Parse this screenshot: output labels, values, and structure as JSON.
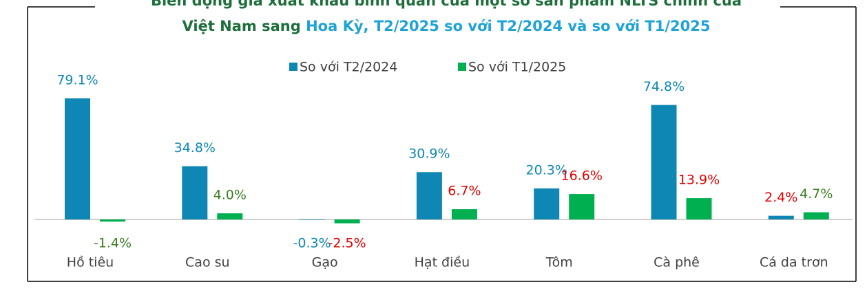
{
  "chart_data": {
    "type": "bar",
    "title": [
      "Biến động giá xuất khẩu bình quân của một số sản phẩm NLTS chính của",
      "Việt Nam sang",
      "Hoa Kỳ, T2/2025 so với T2/2024 và so với T1/2025"
    ],
    "title_colors": [
      "#1e6e3c",
      "#1e6e3c",
      "#1fa3d6"
    ],
    "categories": [
      "Hồ tiêu",
      "Cao su",
      "Gạo",
      "Hạt điều",
      "Tôm",
      "Cà phê",
      "Cá da trơn"
    ],
    "series": [
      {
        "name": "So với T2/2024",
        "color": "#0e87b4",
        "values": [
          79.1,
          34.8,
          -0.3,
          30.9,
          20.3,
          74.8,
          2.4
        ],
        "value_labels": [
          "79.1%",
          "34.8%",
          "-0.3%",
          "30.9%",
          "20.3%",
          "74.8%",
          "2.4%"
        ],
        "label_colors": [
          "#0e87b4",
          "#0e87b4",
          "#0e87b4",
          "#0e87b4",
          "#0e87b4",
          "#0e87b4",
          "#e00000"
        ]
      },
      {
        "name": "So với T1/2025",
        "color": "#00b050",
        "values": [
          -1.4,
          4.0,
          -2.5,
          6.7,
          16.6,
          13.9,
          4.7
        ],
        "value_labels": [
          "-1.4%",
          "4.0%",
          "-2.5%",
          "6.7%",
          "16.6%",
          "13.9%",
          "4.7%"
        ],
        "label_colors": [
          "#3a7d22",
          "#3a7d22",
          "#e00000",
          "#e00000",
          "#e00000",
          "#e00000",
          "#3a7d22"
        ]
      }
    ],
    "ylim": [
      -10,
      90
    ],
    "legend": "top"
  }
}
